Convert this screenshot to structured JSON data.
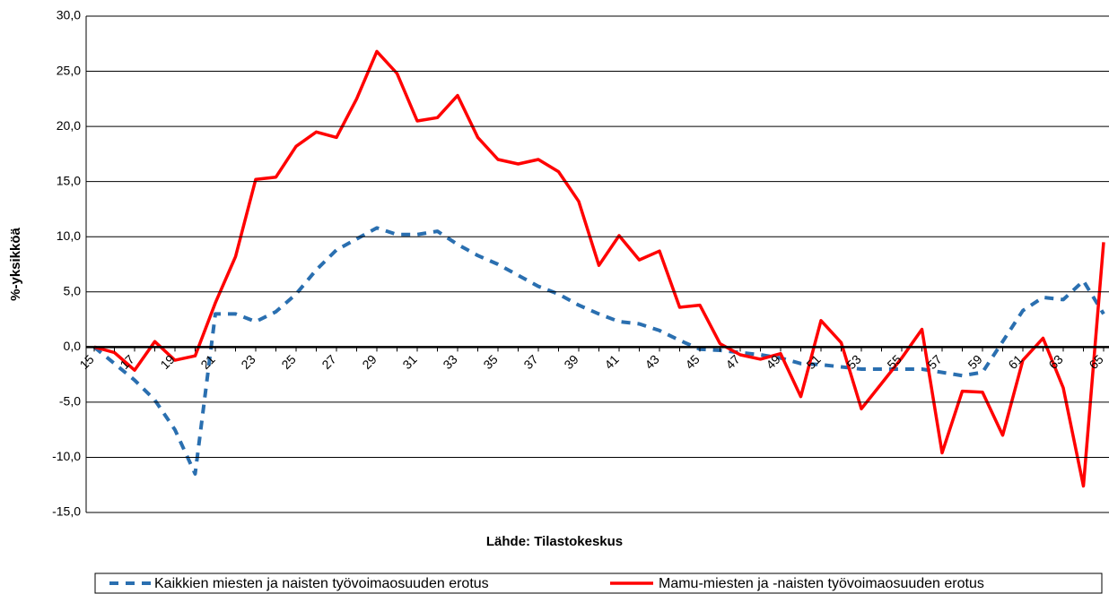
{
  "chart_data": {
    "type": "line",
    "x_label": "Lähde: Tilastokeskus",
    "y_label": "%-yksikköä",
    "categories": [
      "15",
      null,
      "17",
      null,
      "19",
      null,
      "21",
      null,
      "23",
      null,
      "25",
      null,
      "27",
      null,
      "29",
      null,
      "31",
      null,
      "33",
      null,
      "35",
      null,
      "37",
      null,
      "39",
      null,
      "41",
      null,
      "43",
      null,
      "45",
      null,
      "47",
      null,
      "49",
      null,
      "51",
      null,
      "53",
      null,
      "55",
      null,
      "57",
      null,
      "59",
      null,
      "61",
      null,
      "63",
      null,
      "65"
    ],
    "series": [
      {
        "name": "Kaikkien miesten ja naisten työvoimaosuuden erotus",
        "color": "#2a6fb0",
        "dashed": true,
        "values": [
          0.0,
          -1.5,
          -3.0,
          -4.8,
          -7.5,
          -11.5,
          3.0,
          3.0,
          2.3,
          3.2,
          4.8,
          7.0,
          8.8,
          9.8,
          10.8,
          10.2,
          10.2,
          10.5,
          9.3,
          8.3,
          7.5,
          6.5,
          5.5,
          4.8,
          3.8,
          3.0,
          2.3,
          2.1,
          1.5,
          0.6,
          -0.2,
          -0.3,
          -0.5,
          -0.7,
          -1.0,
          -1.5,
          -1.6,
          -1.8,
          -2.0,
          -2.0,
          -2.0,
          -2.0,
          -2.3,
          -2.6,
          -2.3,
          0.5,
          3.3,
          4.5,
          4.3,
          6.0,
          3.0
        ]
      },
      {
        "name": "Mamu-miesten ja -naisten työvoimaosuuden erotus",
        "color": "#ff0000",
        "dashed": false,
        "values": [
          0.0,
          -0.5,
          -2.1,
          0.5,
          -1.2,
          -0.8,
          4.0,
          8.2,
          15.2,
          15.4,
          18.2,
          19.5,
          19.0,
          22.5,
          26.8,
          24.8,
          20.5,
          20.8,
          22.8,
          19.0,
          17.0,
          16.6,
          17.0,
          15.9,
          13.2,
          7.4,
          10.1,
          7.9,
          8.7,
          3.6,
          3.8,
          0.3,
          -0.7,
          -1.1,
          -0.6,
          -4.5,
          2.4,
          0.4,
          -5.6,
          -3.3,
          -1.0,
          1.6,
          -9.6,
          -4.0,
          -4.1,
          -8.0,
          -1.2,
          0.8,
          -3.7,
          -12.6,
          9.5
        ]
      }
    ],
    "ylim": [
      -15,
      30
    ],
    "yticks": [
      {
        "value": -15,
        "label": "-15,0"
      },
      {
        "value": -10,
        "label": "-10,0"
      },
      {
        "value": -5,
        "label": "-5,0"
      },
      {
        "value": 0,
        "label": "0,0"
      },
      {
        "value": 5,
        "label": "5,0"
      },
      {
        "value": 10,
        "label": "10,0"
      },
      {
        "value": 15,
        "label": "15,0"
      },
      {
        "value": 20,
        "label": "20,0"
      },
      {
        "value": 25,
        "label": "25,0"
      },
      {
        "value": 30,
        "label": "30,0"
      }
    ],
    "grid": true,
    "legend": "bottom"
  }
}
